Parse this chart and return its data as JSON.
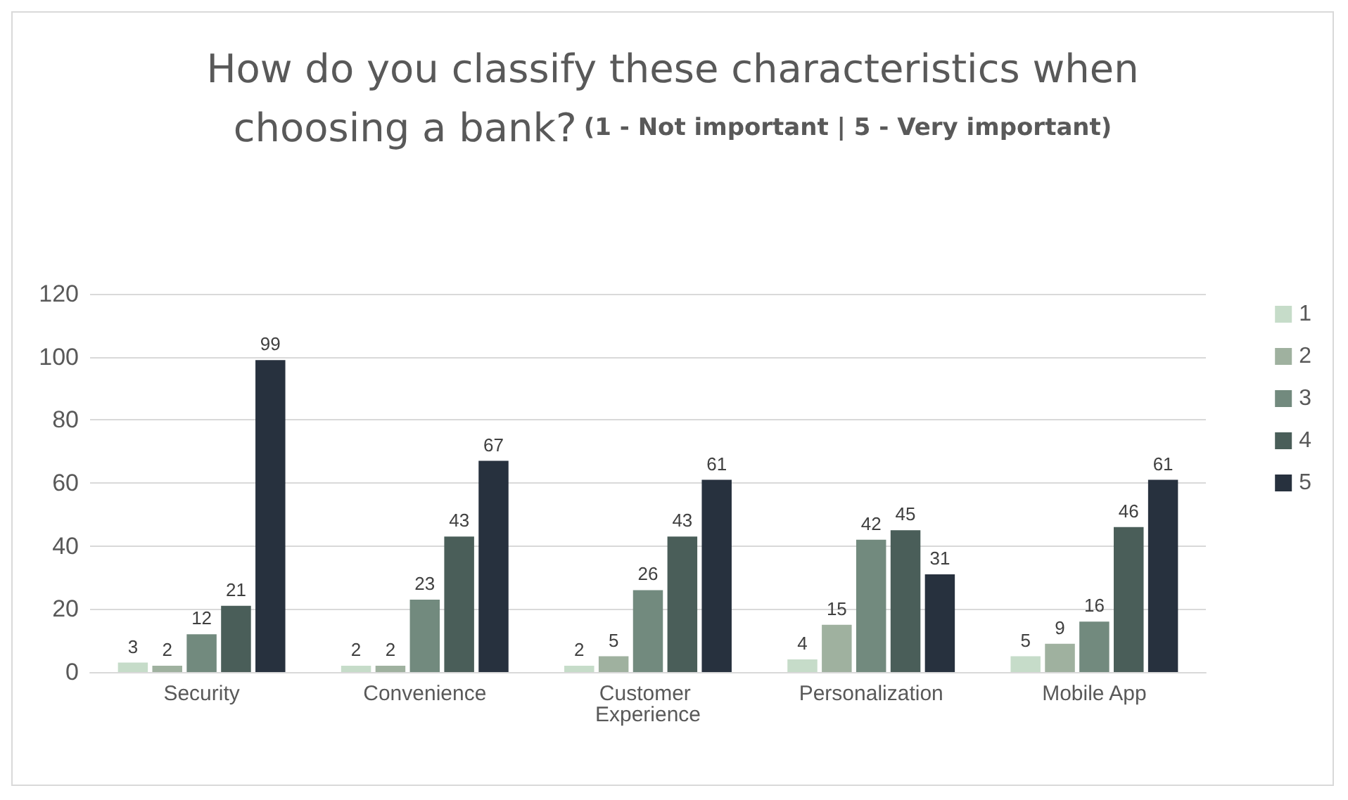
{
  "chart_data": {
    "type": "bar",
    "title": "How do you classify these characteristics when choosing a bank?",
    "subtitle": "(1 - Not important | 5 - Very important)",
    "categories": [
      "Security",
      "Convenience",
      "Customer Experience",
      "Personalization",
      "Mobile App"
    ],
    "series": [
      {
        "name": "1",
        "color": "#c6dcc9",
        "values": [
          3,
          2,
          2,
          4,
          5
        ]
      },
      {
        "name": "2",
        "color": "#9fb19f",
        "values": [
          2,
          2,
          5,
          15,
          9
        ]
      },
      {
        "name": "3",
        "color": "#728a7e",
        "values": [
          12,
          23,
          26,
          42,
          16
        ]
      },
      {
        "name": "4",
        "color": "#4a5e59",
        "values": [
          21,
          43,
          43,
          45,
          46
        ]
      },
      {
        "name": "5",
        "color": "#27313e",
        "values": [
          99,
          67,
          61,
          31,
          61
        ]
      }
    ],
    "ylim": [
      0,
      120
    ],
    "yticks": [
      0,
      20,
      40,
      60,
      80,
      100,
      120
    ],
    "grid": "y",
    "legend": "right",
    "data_labels": true
  }
}
